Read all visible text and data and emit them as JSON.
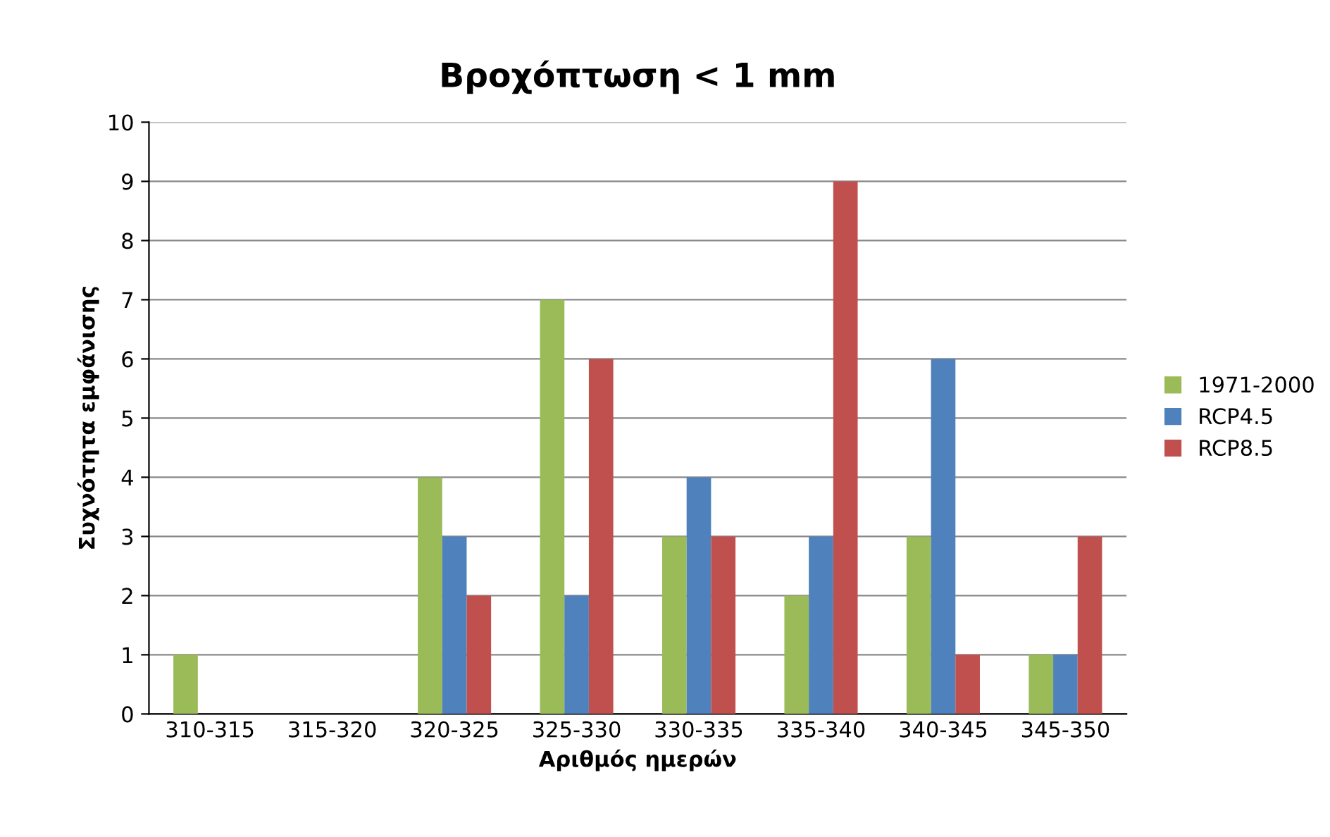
{
  "chart_data": {
    "type": "bar",
    "title": "Βροχόπτωση < 1 mm",
    "xlabel": "Αριθμός ημερών",
    "ylabel": "Συχνότητα εμφάνισης",
    "categories": [
      "310-315",
      "315-320",
      "320-325",
      "325-330",
      "330-335",
      "335-340",
      "340-345",
      "345-350"
    ],
    "series": [
      {
        "name": "1971-2000",
        "color": "#9bbb59",
        "values": [
          1,
          0,
          4,
          7,
          3,
          2,
          3,
          1
        ]
      },
      {
        "name": "RCP4.5",
        "color": "#4f81bd",
        "values": [
          0,
          0,
          3,
          2,
          4,
          3,
          6,
          1
        ]
      },
      {
        "name": "RCP8.5",
        "color": "#c0504d",
        "values": [
          0,
          0,
          2,
          6,
          3,
          9,
          1,
          3
        ]
      }
    ],
    "ylim": [
      0,
      10
    ],
    "yticks": [
      0,
      1,
      2,
      3,
      4,
      5,
      6,
      7,
      8,
      9,
      10
    ],
    "grid": "y",
    "legend": "right"
  }
}
